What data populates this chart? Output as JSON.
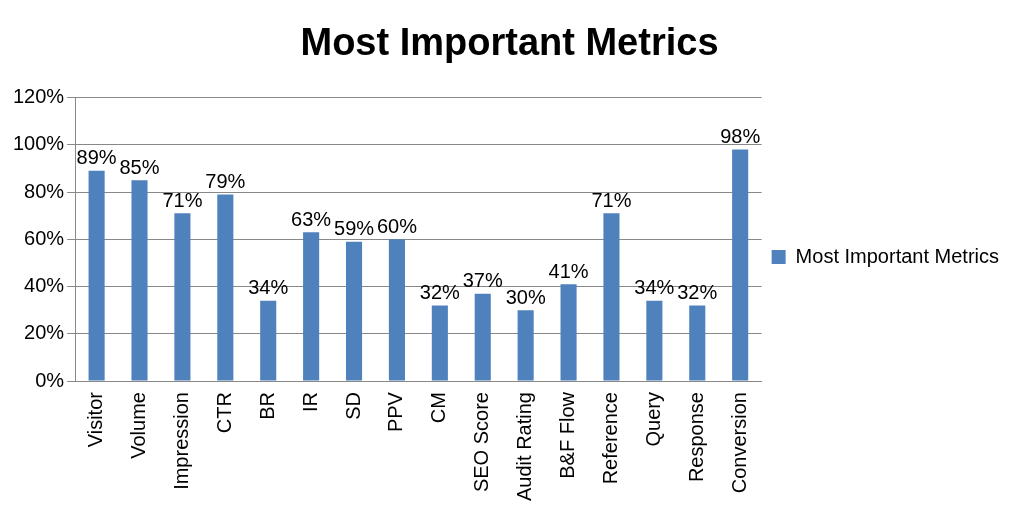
{
  "chart_data": {
    "type": "bar",
    "title": "Most Important Metrics",
    "categories": [
      "Visitor",
      "Volume",
      "Impression",
      "CTR",
      "BR",
      "IR",
      "SD",
      "PPV",
      "CM",
      "SEO Score",
      "Audit Rating",
      "B&F Flow",
      "Reference",
      "Query",
      "Response",
      "Conversion"
    ],
    "series": [
      {
        "name": "Most Important Metrics",
        "color": "#4f81bd",
        "values": [
          89,
          85,
          71,
          79,
          34,
          63,
          59,
          60,
          32,
          37,
          30,
          41,
          71,
          34,
          32,
          98
        ],
        "value_labels": [
          "89%",
          "85%",
          "71%",
          "79%",
          "34%",
          "63%",
          "59%",
          "60%",
          "32%",
          "37%",
          "30%",
          "41%",
          "71%",
          "34%",
          "32%",
          "98%"
        ]
      }
    ],
    "ylim": [
      0,
      120
    ],
    "yticks": [
      {
        "value": 0,
        "label": "0%"
      },
      {
        "value": 20,
        "label": "20%"
      },
      {
        "value": 40,
        "label": "40%"
      },
      {
        "value": 60,
        "label": "60%"
      },
      {
        "value": 80,
        "label": "80%"
      },
      {
        "value": 100,
        "label": "100%"
      },
      {
        "value": 120,
        "label": "120%"
      }
    ],
    "grid": "y",
    "legend": "right"
  }
}
